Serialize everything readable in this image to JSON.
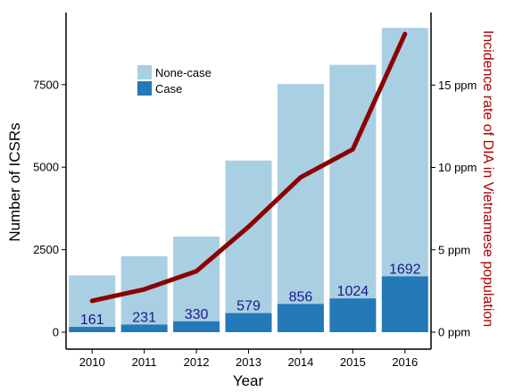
{
  "chart_data": {
    "type": "bar",
    "categories": [
      "2010",
      "2011",
      "2012",
      "2013",
      "2014",
      "2015",
      "2016"
    ],
    "series": [
      {
        "name": "None-case",
        "values": [
          1560,
          2069,
          2570,
          4621,
          6664,
          7076,
          7528
        ],
        "color": "#a9cfe3"
      },
      {
        "name": "Case",
        "values": [
          161,
          231,
          330,
          579,
          856,
          1024,
          1692
        ],
        "color": "#2479b8"
      }
    ],
    "totals": [
      1721,
      2300,
      2900,
      5200,
      7520,
      8100,
      9220
    ],
    "bar_data_labels": [
      "161",
      "231",
      "330",
      "579",
      "856",
      "1024",
      "1692"
    ],
    "data_label_color": "#1a1a8c",
    "stacked": true,
    "line_series": {
      "values": [
        1.9,
        2.6,
        3.7,
        6.4,
        9.4,
        11.1,
        18.1
      ],
      "axis": "right",
      "color": "#8b0000"
    },
    "xlabel": "Year",
    "ylabel": "Number of ICSRs",
    "y2label": "Incidence rate of DIA in Vietnamese population",
    "ylim": [
      0,
      9600
    ],
    "y2lim": [
      0,
      19.2
    ],
    "yticks": [
      0,
      2500,
      5000,
      7500
    ],
    "ytick_labels": [
      "0",
      "2500",
      "5000",
      "7500"
    ],
    "y2ticks": [
      0,
      5,
      10,
      15
    ],
    "y2tick_labels": [
      "0 ppm",
      "5 ppm",
      "10 ppm",
      "15 ppm"
    ],
    "legend": {
      "placement": "top-left",
      "entries": [
        "None-case",
        "Case"
      ]
    },
    "grid": false
  }
}
